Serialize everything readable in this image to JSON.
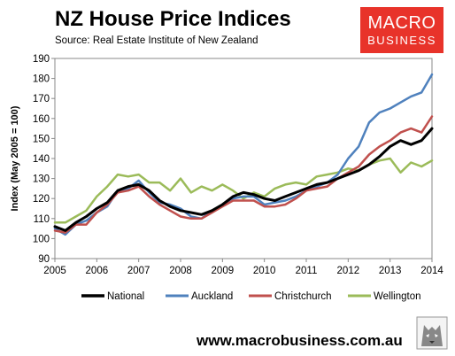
{
  "header": {
    "title": "NZ House Price Indices",
    "source": "Source: Real  Estate Institute of New Zealand"
  },
  "logo": {
    "line1": "MACRO",
    "line2": "BUSINESS",
    "color": "#e8332a"
  },
  "footer": {
    "url": "www.macrobusiness.com.au"
  },
  "chart_data": {
    "type": "line",
    "title": "NZ House Price Indices",
    "ylabel": "Index (May 2005 = 100)",
    "xlabel": "",
    "ylim": [
      90,
      190
    ],
    "xlim": [
      2005,
      2014
    ],
    "yticks": [
      90,
      100,
      110,
      120,
      130,
      140,
      150,
      160,
      170,
      180,
      190
    ],
    "xticks": [
      2005,
      2006,
      2007,
      2008,
      2009,
      2010,
      2011,
      2012,
      2013,
      2014
    ],
    "grid": false,
    "legend_position": "bottom",
    "series": [
      {
        "name": "National",
        "color": "#000000",
        "width": 3,
        "x": [
          2005.0,
          2005.25,
          2005.5,
          2005.75,
          2006.0,
          2006.25,
          2006.5,
          2006.75,
          2007.0,
          2007.25,
          2007.5,
          2007.75,
          2008.0,
          2008.25,
          2008.5,
          2008.75,
          2009.0,
          2009.25,
          2009.5,
          2009.75,
          2010.0,
          2010.25,
          2010.5,
          2010.75,
          2011.0,
          2011.25,
          2011.5,
          2011.75,
          2012.0,
          2012.25,
          2012.5,
          2012.75,
          2013.0,
          2013.25,
          2013.5,
          2013.75,
          2014.0
        ],
        "values": [
          106,
          104,
          108,
          111,
          115,
          118,
          124,
          126,
          127,
          124,
          119,
          116,
          114,
          113,
          112,
          114,
          117,
          121,
          123,
          122,
          120,
          119,
          121,
          123,
          125,
          127,
          128,
          130,
          132,
          134,
          137,
          141,
          146,
          149,
          147,
          149,
          155
        ]
      },
      {
        "name": "Auckland",
        "color": "#4f81bd",
        "width": 2.5,
        "x": [
          2005.0,
          2005.25,
          2005.5,
          2005.75,
          2006.0,
          2006.25,
          2006.5,
          2006.75,
          2007.0,
          2007.25,
          2007.5,
          2007.75,
          2008.0,
          2008.25,
          2008.5,
          2008.75,
          2009.0,
          2009.25,
          2009.5,
          2009.75,
          2010.0,
          2010.25,
          2010.5,
          2010.75,
          2011.0,
          2011.25,
          2011.5,
          2011.75,
          2012.0,
          2012.25,
          2012.5,
          2012.75,
          2013.0,
          2013.25,
          2013.5,
          2013.75,
          2014.0
        ],
        "values": [
          105,
          102,
          107,
          109,
          113,
          116,
          124,
          125,
          129,
          123,
          118,
          117,
          115,
          111,
          110,
          114,
          117,
          120,
          121,
          121,
          117,
          118,
          119,
          121,
          124,
          126,
          128,
          132,
          140,
          146,
          158,
          163,
          165,
          168,
          171,
          173,
          182
        ]
      },
      {
        "name": "Christchurch",
        "color": "#c0504d",
        "width": 2.5,
        "x": [
          2005.0,
          2005.25,
          2005.5,
          2005.75,
          2006.0,
          2006.25,
          2006.5,
          2006.75,
          2007.0,
          2007.25,
          2007.5,
          2007.75,
          2008.0,
          2008.25,
          2008.5,
          2008.75,
          2009.0,
          2009.25,
          2009.5,
          2009.75,
          2010.0,
          2010.25,
          2010.5,
          2010.75,
          2011.0,
          2011.25,
          2011.5,
          2011.75,
          2012.0,
          2012.25,
          2012.5,
          2012.75,
          2013.0,
          2013.25,
          2013.5,
          2013.75,
          2014.0
        ],
        "values": [
          104,
          103,
          107,
          107,
          113,
          117,
          123,
          124,
          126,
          121,
          117,
          114,
          111,
          110,
          110,
          113,
          116,
          119,
          119,
          119,
          116,
          116,
          117,
          120,
          124,
          125,
          126,
          130,
          133,
          136,
          142,
          146,
          149,
          153,
          155,
          153,
          161
        ]
      },
      {
        "name": "Wellington",
        "color": "#9bbb59",
        "width": 2.5,
        "x": [
          2005.0,
          2005.25,
          2005.5,
          2005.75,
          2006.0,
          2006.25,
          2006.5,
          2006.75,
          2007.0,
          2007.25,
          2007.5,
          2007.75,
          2008.0,
          2008.25,
          2008.5,
          2008.75,
          2009.0,
          2009.25,
          2009.5,
          2009.75,
          2010.0,
          2010.25,
          2010.5,
          2010.75,
          2011.0,
          2011.25,
          2011.5,
          2011.75,
          2012.0,
          2012.25,
          2012.5,
          2012.75,
          2013.0,
          2013.25,
          2013.5,
          2013.75,
          2014.0
        ],
        "values": [
          108,
          108,
          111,
          114,
          121,
          126,
          132,
          131,
          132,
          128,
          128,
          124,
          130,
          123,
          126,
          124,
          127,
          124,
          120,
          123,
          121,
          125,
          127,
          128,
          127,
          131,
          132,
          133,
          135,
          134,
          137,
          139,
          140,
          133,
          138,
          136,
          139
        ]
      }
    ]
  }
}
